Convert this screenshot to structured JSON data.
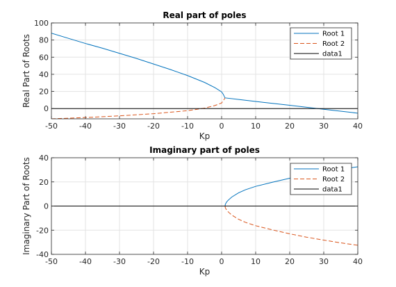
{
  "chart_data": [
    {
      "type": "line",
      "title": "Real part of poles",
      "xlabel": "Kp",
      "ylabel": "Real Part of Roots",
      "xlim": [
        -50,
        40
      ],
      "ylim": [
        -12,
        100
      ],
      "xticks": [
        -50,
        -40,
        -30,
        -20,
        -10,
        0,
        10,
        20,
        30,
        40
      ],
      "yticks": [
        0,
        20,
        40,
        60,
        80,
        100
      ],
      "grid": true,
      "legend_position": "top-right",
      "series": [
        {
          "name": "Root 1",
          "color": "#0072BD",
          "style": "solid",
          "x": [
            -50,
            -45,
            -40,
            -35,
            -30,
            -25,
            -20,
            -15,
            -10,
            -5,
            -2,
            0,
            0.5,
            0.8,
            1,
            5,
            10,
            20,
            30,
            40
          ],
          "y": [
            88,
            82,
            76,
            70.5,
            64.5,
            58.5,
            52,
            45.5,
            38.5,
            30.5,
            24.5,
            19.5,
            16.5,
            14,
            12.5,
            10.6,
            8.3,
            3.8,
            -0.8,
            -5.4
          ]
        },
        {
          "name": "Root 2",
          "color": "#D95319",
          "style": "dashed",
          "x": [
            -50,
            -40,
            -30,
            -20,
            -10,
            -5,
            -2,
            0,
            0.5,
            0.8,
            1
          ],
          "y": [
            -12,
            -10.5,
            -8.5,
            -6,
            -2.5,
            0.5,
            3.5,
            6.5,
            9.5,
            11,
            12.5
          ]
        },
        {
          "name": "data1",
          "color": "#000000",
          "style": "solid",
          "x": [
            -50,
            40
          ],
          "y": [
            0,
            0
          ]
        }
      ]
    },
    {
      "type": "line",
      "title": "Imaginary part of poles",
      "xlabel": "Kp",
      "ylabel": "Imaginary Part of Roots",
      "xlim": [
        -50,
        40
      ],
      "ylim": [
        -40,
        40
      ],
      "xticks": [
        -50,
        -40,
        -30,
        -20,
        -10,
        0,
        10,
        20,
        30,
        40
      ],
      "yticks": [
        -40,
        -20,
        0,
        20,
        40
      ],
      "grid": true,
      "legend_position": "top-right",
      "series": [
        {
          "name": "Root 1",
          "color": "#0072BD",
          "style": "solid",
          "x": [
            1,
            1.1,
            1.5,
            2,
            3,
            5,
            7,
            10,
            15,
            20,
            25,
            30,
            35,
            40
          ],
          "y": [
            0,
            1.5,
            3.5,
            5,
            7.5,
            11,
            13.5,
            16.3,
            19.8,
            23,
            25.8,
            28.2,
            30.5,
            32.5
          ]
        },
        {
          "name": "Root 2",
          "color": "#D95319",
          "style": "dashed",
          "x": [
            1,
            1.1,
            1.5,
            2,
            3,
            5,
            7,
            10,
            15,
            20,
            25,
            30,
            35,
            40
          ],
          "y": [
            0,
            -1.5,
            -3.5,
            -5,
            -7.5,
            -11,
            -13.5,
            -16.3,
            -19.8,
            -23,
            -25.8,
            -28.2,
            -30.5,
            -32.5
          ]
        },
        {
          "name": "data1",
          "color": "#000000",
          "style": "solid",
          "x": [
            -50,
            40
          ],
          "y": [
            0,
            0
          ]
        }
      ]
    }
  ]
}
